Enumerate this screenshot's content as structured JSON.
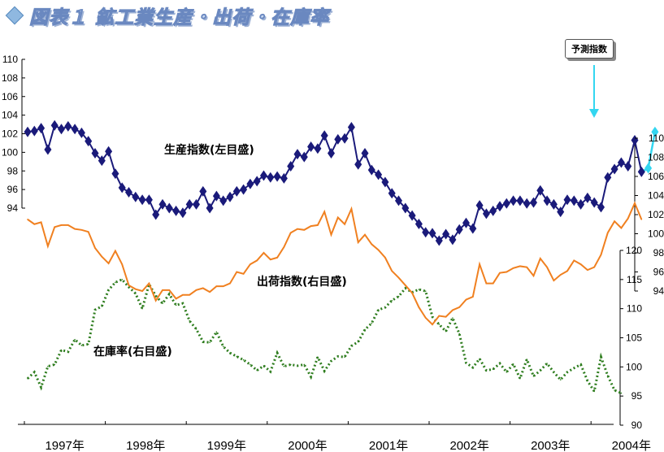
{
  "title": "図表１ 鉱工業生産・出荷・在庫率",
  "callout": "予測指数",
  "colors": {
    "production": "#1a1a7a",
    "forecast": "#33d6f0",
    "shipments": "#f08020",
    "inventory": "#2e7d1e",
    "title": "#6a88c0"
  },
  "chart_data": {
    "type": "line",
    "x_unit": "month",
    "x_start": "1997-01",
    "x_labels": [
      "1997年",
      "1998年",
      "1999年",
      "2000年",
      "2001年",
      "2002年",
      "2003年",
      "2004年"
    ],
    "axes": {
      "production_left": {
        "ticks": [
          94,
          96,
          98,
          100,
          102,
          104,
          106,
          108,
          110
        ],
        "range": [
          94,
          110
        ]
      },
      "shipments_right": {
        "ticks": [
          94,
          96,
          98,
          100,
          102,
          104,
          106,
          108,
          110
        ],
        "range": [
          94,
          110
        ]
      },
      "inventory_right": {
        "ticks": [
          90,
          95,
          100,
          105,
          110,
          115,
          120
        ],
        "range": [
          90,
          120
        ]
      }
    },
    "series": [
      {
        "name": "生産指数(左目盛)",
        "axis": "production_left",
        "marker": "diamond",
        "values": [
          102.2,
          102.3,
          102.6,
          100.3,
          102.9,
          102.5,
          102.8,
          102.5,
          102.1,
          101.2,
          99.9,
          99.1,
          100.1,
          97.7,
          96.2,
          95.7,
          95.2,
          94.9,
          94.9,
          93.3,
          94.4,
          94.0,
          93.7,
          93.5,
          94.4,
          94.4,
          95.8,
          94.0,
          95.3,
          94.8,
          95.2,
          95.8,
          96.0,
          96.6,
          96.9,
          97.5,
          97.3,
          97.4,
          97.2,
          98.5,
          99.8,
          99.5,
          100.6,
          100.4,
          101.8,
          99.9,
          101.4,
          101.5,
          102.7,
          98.7,
          99.9,
          98.1,
          97.6,
          96.8,
          95.6,
          94.8,
          94.0,
          93.2,
          92.3,
          91.4,
          91.3,
          90.5,
          91.2,
          90.6,
          91.7,
          92.4,
          91.8,
          94.3,
          93.4,
          93.7,
          94.2,
          94.5,
          94.8,
          94.8,
          94.5,
          94.6,
          95.9,
          94.8,
          94.4,
          93.6,
          94.9,
          94.8,
          94.4,
          95.1,
          94.6,
          94.1,
          97.3,
          98.2,
          98.9,
          98.5,
          101.3,
          97.9
        ],
        "forecast_values": [
          98.3,
          102.2
        ]
      },
      {
        "name": "出荷指数(右目盛)",
        "axis": "shipments_right",
        "values": [
          101.5,
          101.0,
          101.2,
          98.7,
          100.7,
          100.9,
          100.9,
          100.5,
          100.4,
          100.2,
          98.5,
          97.6,
          96.9,
          98.2,
          96.8,
          94.6,
          94.2,
          94.0,
          94.8,
          93.0,
          94.1,
          94.1,
          93.2,
          93.6,
          93.6,
          94.1,
          94.3,
          93.9,
          94.5,
          94.5,
          94.8,
          96.0,
          95.8,
          96.8,
          97.2,
          98.0,
          97.3,
          97.5,
          98.6,
          100.1,
          100.5,
          100.4,
          100.8,
          100.9,
          102.3,
          99.9,
          101.7,
          101.0,
          102.6,
          99.1,
          99.9,
          98.9,
          98.3,
          97.5,
          96.1,
          95.4,
          94.6,
          93.8,
          92.3,
          91.2,
          90.5,
          91.4,
          91.3,
          92.0,
          92.3,
          93.1,
          93.4,
          96.8,
          94.8,
          94.8,
          95.9,
          96.0,
          96.4,
          96.6,
          96.5,
          95.6,
          97.4,
          96.5,
          95.1,
          95.7,
          96.1,
          97.2,
          96.8,
          96.2,
          96.5,
          97.8,
          100.1,
          101.3,
          100.6,
          101.6,
          103.2,
          101.5
        ]
      },
      {
        "name": "在庫率(右目盛)",
        "axis": "inventory_right",
        "values": [
          98.0,
          99.1,
          96.5,
          100.1,
          100.4,
          102.9,
          102.6,
          104.7,
          103.7,
          103.9,
          109.8,
          110.4,
          113.2,
          114.5,
          115.0,
          113.7,
          112.6,
          110.0,
          114.2,
          112.2,
          110.9,
          112.5,
          110.6,
          110.9,
          107.9,
          106.5,
          104.3,
          104.2,
          106.0,
          103.5,
          102.4,
          101.8,
          101.2,
          100.4,
          99.4,
          100.2,
          99.2,
          102.4,
          100.1,
          100.4,
          100.2,
          100.4,
          98.3,
          101.7,
          99.3,
          101.0,
          101.8,
          101.7,
          103.6,
          104.3,
          106.4,
          107.5,
          109.8,
          110.2,
          111.4,
          112.1,
          113.5,
          112.8,
          113.3,
          113.0,
          108.6,
          107.3,
          106.1,
          108.4,
          105.7,
          100.7,
          99.9,
          101.4,
          99.4,
          99.6,
          100.6,
          99.1,
          100.5,
          98.0,
          101.3,
          98.4,
          99.4,
          100.6,
          99.1,
          97.8,
          99.1,
          99.8,
          100.4,
          97.6,
          95.8,
          101.7,
          98.5,
          96.0,
          95.5
        ]
      }
    ]
  }
}
